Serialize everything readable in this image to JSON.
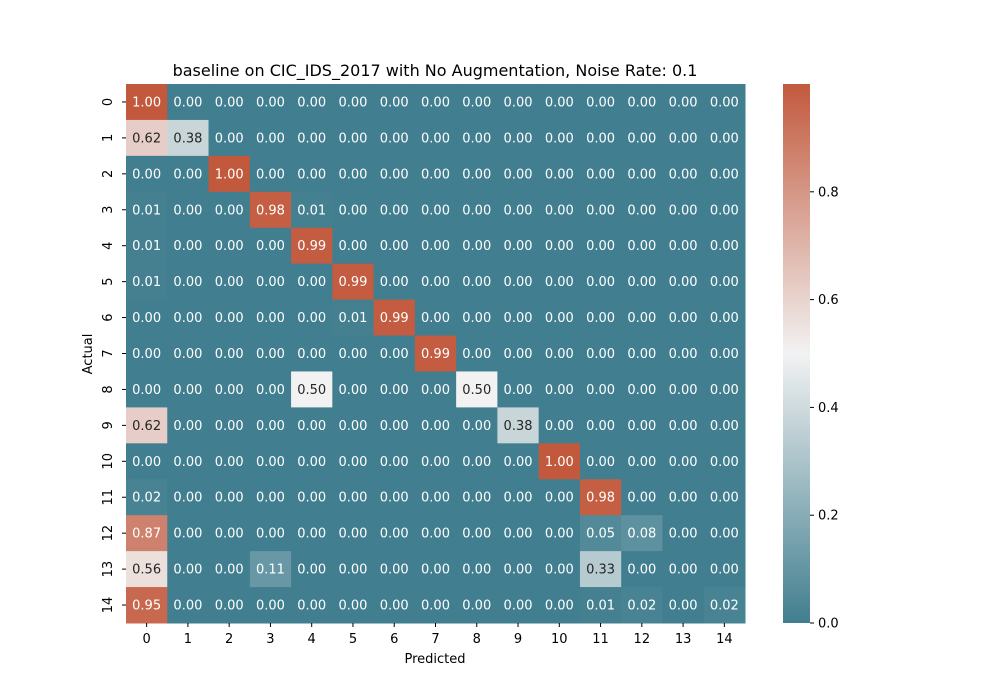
{
  "chart_data": {
    "type": "heatmap",
    "title": "baseline on CIC_IDS_2017 with No Augmentation, Noise Rate: 0.1",
    "xlabel": "Predicted",
    "ylabel": "Actual",
    "x_categories": [
      "0",
      "1",
      "2",
      "3",
      "4",
      "5",
      "6",
      "7",
      "8",
      "9",
      "10",
      "11",
      "12",
      "13",
      "14"
    ],
    "y_categories": [
      "0",
      "1",
      "2",
      "3",
      "4",
      "5",
      "6",
      "7",
      "8",
      "9",
      "10",
      "11",
      "12",
      "13",
      "14"
    ],
    "values": [
      [
        1.0,
        0.0,
        0.0,
        0.0,
        0.0,
        0.0,
        0.0,
        0.0,
        0.0,
        0.0,
        0.0,
        0.0,
        0.0,
        0.0,
        0.0
      ],
      [
        0.62,
        0.38,
        0.0,
        0.0,
        0.0,
        0.0,
        0.0,
        0.0,
        0.0,
        0.0,
        0.0,
        0.0,
        0.0,
        0.0,
        0.0
      ],
      [
        0.0,
        0.0,
        1.0,
        0.0,
        0.0,
        0.0,
        0.0,
        0.0,
        0.0,
        0.0,
        0.0,
        0.0,
        0.0,
        0.0,
        0.0
      ],
      [
        0.01,
        0.0,
        0.0,
        0.98,
        0.01,
        0.0,
        0.0,
        0.0,
        0.0,
        0.0,
        0.0,
        0.0,
        0.0,
        0.0,
        0.0
      ],
      [
        0.01,
        0.0,
        0.0,
        0.0,
        0.99,
        0.0,
        0.0,
        0.0,
        0.0,
        0.0,
        0.0,
        0.0,
        0.0,
        0.0,
        0.0
      ],
      [
        0.01,
        0.0,
        0.0,
        0.0,
        0.0,
        0.99,
        0.0,
        0.0,
        0.0,
        0.0,
        0.0,
        0.0,
        0.0,
        0.0,
        0.0
      ],
      [
        0.0,
        0.0,
        0.0,
        0.0,
        0.0,
        0.01,
        0.99,
        0.0,
        0.0,
        0.0,
        0.0,
        0.0,
        0.0,
        0.0,
        0.0
      ],
      [
        0.0,
        0.0,
        0.0,
        0.0,
        0.0,
        0.0,
        0.0,
        0.99,
        0.0,
        0.0,
        0.0,
        0.0,
        0.0,
        0.0,
        0.0
      ],
      [
        0.0,
        0.0,
        0.0,
        0.0,
        0.5,
        0.0,
        0.0,
        0.0,
        0.5,
        0.0,
        0.0,
        0.0,
        0.0,
        0.0,
        0.0
      ],
      [
        0.62,
        0.0,
        0.0,
        0.0,
        0.0,
        0.0,
        0.0,
        0.0,
        0.0,
        0.38,
        0.0,
        0.0,
        0.0,
        0.0,
        0.0
      ],
      [
        0.0,
        0.0,
        0.0,
        0.0,
        0.0,
        0.0,
        0.0,
        0.0,
        0.0,
        0.0,
        1.0,
        0.0,
        0.0,
        0.0,
        0.0
      ],
      [
        0.02,
        0.0,
        0.0,
        0.0,
        0.0,
        0.0,
        0.0,
        0.0,
        0.0,
        0.0,
        0.0,
        0.98,
        0.0,
        0.0,
        0.0
      ],
      [
        0.87,
        0.0,
        0.0,
        0.0,
        0.0,
        0.0,
        0.0,
        0.0,
        0.0,
        0.0,
        0.0,
        0.05,
        0.08,
        0.0,
        0.0
      ],
      [
        0.56,
        0.0,
        0.0,
        0.11,
        0.0,
        0.0,
        0.0,
        0.0,
        0.0,
        0.0,
        0.0,
        0.33,
        0.0,
        0.0,
        0.0
      ],
      [
        0.95,
        0.0,
        0.0,
        0.0,
        0.0,
        0.0,
        0.0,
        0.0,
        0.0,
        0.0,
        0.0,
        0.01,
        0.02,
        0.0,
        0.02
      ]
    ],
    "colorbar": {
      "range": [
        0.0,
        1.0
      ],
      "ticks": [
        0.0,
        0.2,
        0.4,
        0.6,
        0.8
      ],
      "tick_labels": [
        "0.0",
        "0.2",
        "0.4",
        "0.6",
        "0.8"
      ],
      "colors": [
        "#417e8f",
        "#f2f2f2",
        "#c2593d"
      ]
    },
    "grid": false
  }
}
